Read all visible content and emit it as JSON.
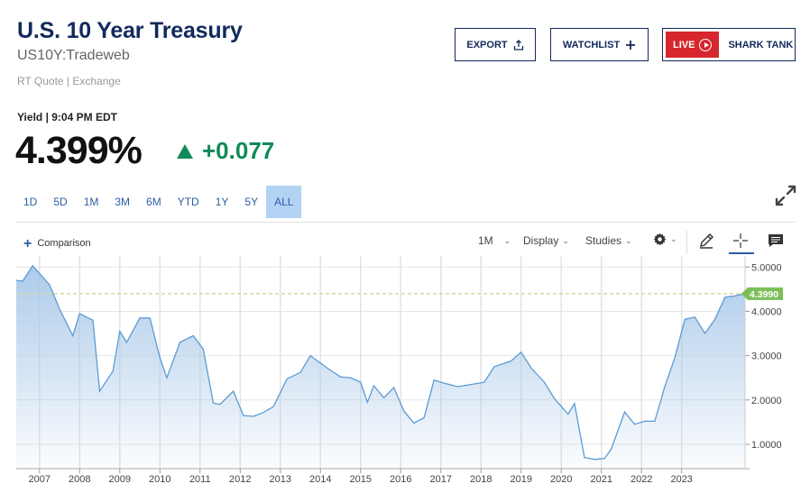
{
  "header": {
    "title": "U.S. 10 Year Treasury",
    "symbol": "US10Y:Tradeweb",
    "source": "RT Quote | Exchange"
  },
  "actions": {
    "export_label": "EXPORT",
    "watchlist_label": "WATCHLIST",
    "live_label": "LIVE",
    "live_show_label": "SHARK TANK"
  },
  "quote": {
    "label": "Yield | 9:04 PM EDT",
    "value": "4.399%",
    "change": "+0.077",
    "direction": "up",
    "change_color": "#118a58"
  },
  "ranges": [
    "1D",
    "5D",
    "1M",
    "3M",
    "6M",
    "YTD",
    "1Y",
    "5Y",
    "ALL"
  ],
  "active_range": "ALL",
  "toolbar": {
    "comparison_label": "Comparison",
    "interval_label": "1M",
    "display_label": "Display",
    "studies_label": "Studies",
    "icons": [
      "gear-icon",
      "pencil-icon",
      "crosshair-icon",
      "comment-icon"
    ]
  },
  "chart_data": {
    "type": "area",
    "series": [
      {
        "x": [
          2006.42,
          2006.58,
          2006.83,
          2007.25,
          2007.5,
          2007.83,
          2008.0,
          2008.33,
          2008.5,
          2008.83,
          2009.0,
          2009.17,
          2009.5,
          2009.75,
          2010.0,
          2010.17,
          2010.5,
          2010.83,
          2011.08,
          2011.33,
          2011.5,
          2011.83,
          2012.08,
          2012.33,
          2012.58,
          2012.83,
          2013.17,
          2013.5,
          2013.75,
          2014.17,
          2014.5,
          2014.75,
          2015.0,
          2015.17,
          2015.33,
          2015.58,
          2015.83,
          2016.08,
          2016.33,
          2016.58,
          2016.83,
          2017.08,
          2017.42,
          2017.75,
          2018.08,
          2018.33,
          2018.75,
          2019.0,
          2019.25,
          2019.58,
          2019.83,
          2020.17,
          2020.33,
          2020.58,
          2020.83,
          2021.08,
          2021.25,
          2021.58,
          2021.83,
          2022.08,
          2022.33,
          2022.58,
          2022.83,
          2023.08,
          2023.33,
          2023.58,
          2023.83,
          2024.08,
          2024.33,
          2024.58
        ],
        "values": [
          4.7,
          4.68,
          5.03,
          4.6,
          4.05,
          3.45,
          3.95,
          3.8,
          2.2,
          2.65,
          3.55,
          3.3,
          3.85,
          3.85,
          2.95,
          2.5,
          3.3,
          3.45,
          3.15,
          1.93,
          1.9,
          2.2,
          1.65,
          1.63,
          1.72,
          1.85,
          2.48,
          2.62,
          3.0,
          2.72,
          2.52,
          2.5,
          2.4,
          1.95,
          2.32,
          2.05,
          2.28,
          1.75,
          1.48,
          1.6,
          2.45,
          2.38,
          2.3,
          2.35,
          2.4,
          2.75,
          2.88,
          3.08,
          2.72,
          2.4,
          2.03,
          1.68,
          1.92,
          0.7,
          0.66,
          0.68,
          0.9,
          1.73,
          1.45,
          1.52,
          1.52,
          2.3,
          2.95,
          3.82,
          3.87,
          3.5,
          3.82,
          4.32,
          4.35,
          4.399
        ]
      }
    ],
    "x_ticks": [
      "2007",
      "2008",
      "2009",
      "2010",
      "2011",
      "2012",
      "2013",
      "2014",
      "2015",
      "2016",
      "2017",
      "2018",
      "2019",
      "2020",
      "2021",
      "2022",
      "2023"
    ],
    "y_ticks": [
      "1.0000",
      "2.0000",
      "3.0000",
      "4.0000",
      "5.0000"
    ],
    "last_value_label": "4.3990",
    "last_value": 4.399,
    "ylim": [
      0.45,
      5.25
    ],
    "xlim": [
      2006.42,
      2024.58
    ],
    "grid": true,
    "line_color": "#5b9bd5",
    "fill_color": "#a9c8e8",
    "badge_color": "#7cbf5a",
    "ref_line_color": "#d4d9a0"
  }
}
